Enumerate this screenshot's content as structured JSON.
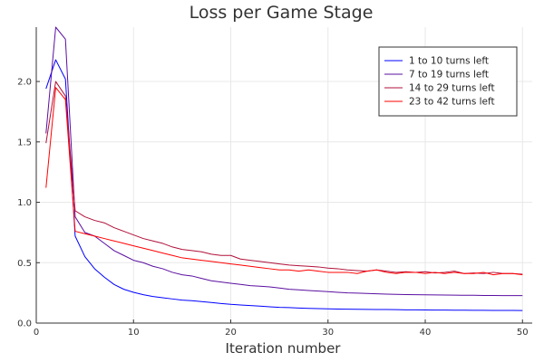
{
  "chart_data": {
    "type": "line",
    "title": "Loss per Game Stage",
    "xlabel": "Iteration number",
    "ylabel": "",
    "xlim": [
      0,
      51
    ],
    "ylim": [
      0,
      2.45
    ],
    "xticks": [
      0,
      10,
      20,
      30,
      40,
      50
    ],
    "yticks": [
      0.0,
      0.5,
      1.0,
      1.5,
      2.0
    ],
    "xtick_labels": [
      "0",
      "10",
      "20",
      "30",
      "40",
      "50"
    ],
    "ytick_labels": [
      "0.0",
      "0.5",
      "1.0",
      "1.5",
      "2.0"
    ],
    "grid": true,
    "legend_position": "top-right",
    "x": [
      1,
      2,
      3,
      4,
      5,
      6,
      7,
      8,
      9,
      10,
      11,
      12,
      13,
      14,
      15,
      16,
      17,
      18,
      19,
      20,
      21,
      22,
      23,
      24,
      25,
      26,
      27,
      28,
      29,
      30,
      31,
      32,
      33,
      34,
      35,
      36,
      37,
      38,
      39,
      40,
      41,
      42,
      43,
      44,
      45,
      46,
      47,
      48,
      49,
      50
    ],
    "series": [
      {
        "name": "1 to 10 turns left",
        "color": "#0000ff",
        "values": [
          1.94,
          2.18,
          2.02,
          0.72,
          0.55,
          0.45,
          0.38,
          0.32,
          0.28,
          0.255,
          0.235,
          0.22,
          0.21,
          0.2,
          0.19,
          0.185,
          0.178,
          0.17,
          0.162,
          0.155,
          0.15,
          0.145,
          0.14,
          0.135,
          0.13,
          0.128,
          0.125,
          0.122,
          0.12,
          0.118,
          0.116,
          0.115,
          0.114,
          0.113,
          0.112,
          0.112,
          0.111,
          0.11,
          0.11,
          0.109,
          0.108,
          0.108,
          0.107,
          0.107,
          0.106,
          0.106,
          0.105,
          0.105,
          0.105,
          0.104
        ]
      },
      {
        "name": "7 to 19 turns left",
        "color": "#5a0fa0",
        "values": [
          1.57,
          2.45,
          2.35,
          0.88,
          0.75,
          0.72,
          0.66,
          0.6,
          0.56,
          0.52,
          0.5,
          0.47,
          0.45,
          0.42,
          0.4,
          0.39,
          0.37,
          0.35,
          0.34,
          0.33,
          0.32,
          0.31,
          0.305,
          0.3,
          0.29,
          0.28,
          0.275,
          0.27,
          0.265,
          0.26,
          0.255,
          0.25,
          0.248,
          0.245,
          0.243,
          0.24,
          0.238,
          0.236,
          0.235,
          0.234,
          0.233,
          0.232,
          0.231,
          0.23,
          0.23,
          0.229,
          0.229,
          0.228,
          0.228,
          0.228
        ]
      },
      {
        "name": "14 to 29 turns left",
        "color": "#b0103a",
        "values": [
          1.49,
          2.0,
          1.88,
          0.93,
          0.88,
          0.85,
          0.83,
          0.79,
          0.76,
          0.73,
          0.7,
          0.68,
          0.66,
          0.63,
          0.61,
          0.6,
          0.59,
          0.57,
          0.56,
          0.56,
          0.53,
          0.52,
          0.51,
          0.5,
          0.49,
          0.48,
          0.475,
          0.47,
          0.465,
          0.455,
          0.45,
          0.44,
          0.435,
          0.43,
          0.44,
          0.43,
          0.42,
          0.425,
          0.42,
          0.425,
          0.415,
          0.42,
          0.43,
          0.41,
          0.415,
          0.41,
          0.42,
          0.41,
          0.41,
          0.405
        ]
      },
      {
        "name": "23 to 42 turns left",
        "color": "#ff0000",
        "values": [
          1.12,
          1.95,
          1.85,
          0.76,
          0.74,
          0.72,
          0.7,
          0.68,
          0.66,
          0.64,
          0.62,
          0.6,
          0.58,
          0.56,
          0.54,
          0.53,
          0.52,
          0.51,
          0.5,
          0.49,
          0.48,
          0.47,
          0.46,
          0.45,
          0.44,
          0.44,
          0.43,
          0.44,
          0.43,
          0.42,
          0.42,
          0.42,
          0.41,
          0.43,
          0.44,
          0.42,
          0.41,
          0.42,
          0.42,
          0.41,
          0.42,
          0.41,
          0.42,
          0.41,
          0.41,
          0.42,
          0.4,
          0.41,
          0.41,
          0.4
        ]
      }
    ]
  }
}
